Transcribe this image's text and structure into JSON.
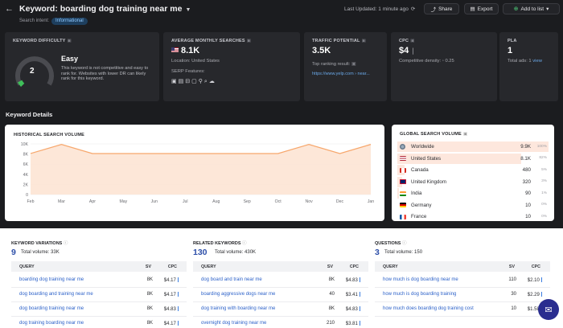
{
  "header": {
    "back_icon": "←",
    "title": "Keyword: boarding dog training near me",
    "caret": "▼",
    "search_intent_label": "Search intent:",
    "search_intent_value": "Informational",
    "last_updated": "Last Updated: 1 minute ago",
    "share_label": "Share",
    "export_label": "Export",
    "add_to_list_label": "Add to list"
  },
  "keyword_difficulty": {
    "label": "KEYWORD DIFFICULTY",
    "value": "2",
    "level": "Easy",
    "score_fraction": 0.02,
    "description": "This keyword is not competitive and easy to rank for. Websites with lower DR can likely rank for this keyword."
  },
  "avg_monthly_searches": {
    "label": "AVERAGE MONTHLY SEARCHES",
    "value": "8.1K",
    "location": "Location: United States",
    "serp_features_label": "SERP Features:",
    "serp_feature_icons": [
      "▣",
      "▤",
      "⊟",
      "▢",
      "⚲",
      "⌕",
      "☁"
    ]
  },
  "traffic_potential": {
    "label": "TRAFFIC POTENTIAL",
    "value": "3.5K",
    "top_ranking_label": "Top ranking result:",
    "top_ranking_url": "https://www.yelp.com › near..."
  },
  "cpc": {
    "label": "CPC",
    "value": "$4",
    "competitive_density": "Competitive density: ◦ 0.25"
  },
  "pla": {
    "label": "PLA",
    "value": "1",
    "total_ads": "Total ads: 1",
    "view_link": "view"
  },
  "section_title": "Keyword Details",
  "historical": {
    "label": "HISTORICAL SEARCH VOLUME"
  },
  "chart_data": {
    "type": "area",
    "title": "HISTORICAL SEARCH VOLUME",
    "categories": [
      "Feb",
      "Mar",
      "Apr",
      "May",
      "Jun",
      "Jul",
      "Aug",
      "Sep",
      "Oct",
      "Nov",
      "Dec",
      "Jan"
    ],
    "values": [
      8100,
      9900,
      8100,
      8100,
      8100,
      8100,
      8100,
      8100,
      8100,
      9900,
      8100,
      9900
    ],
    "y_ticks": [
      "0",
      "2K",
      "4K",
      "6K",
      "8K",
      "10K"
    ],
    "ylim": [
      0,
      10000
    ],
    "color": "#f7a76c",
    "grid": true
  },
  "global": {
    "label": "GLOBAL SEARCH VOLUME",
    "rows": [
      {
        "name": "Worldwide",
        "value": "9.9K",
        "pct": "100%",
        "frac": 1.0,
        "flag": "globe"
      },
      {
        "name": "United States",
        "value": "8.1K",
        "pct": "82%",
        "frac": 0.82,
        "flag": "us"
      },
      {
        "name": "Canada",
        "value": "480",
        "pct": "5%",
        "frac": 0.05,
        "flag": "ca"
      },
      {
        "name": "United Kingdom",
        "value": "320",
        "pct": "3%",
        "frac": 0.03,
        "flag": "uk"
      },
      {
        "name": "India",
        "value": "90",
        "pct": "1%",
        "frac": 0.01,
        "flag": "in"
      },
      {
        "name": "Germany",
        "value": "10",
        "pct": "0%",
        "frac": 0.0,
        "flag": "de"
      },
      {
        "name": "France",
        "value": "10",
        "pct": "0%",
        "frac": 0.0,
        "flag": "fr"
      }
    ]
  },
  "keyword_variations": {
    "label": "KEYWORD VARIATIONS",
    "count": "9",
    "total_volume": "Total volume: 33K",
    "col_query": "QUERY",
    "col_sv": "SV",
    "col_cpc": "CPC",
    "rows": [
      {
        "query": "boarding dog training near me",
        "sv": "8K",
        "cpc": "$4.17"
      },
      {
        "query": "dog boarding and training near me",
        "sv": "8K",
        "cpc": "$4.17"
      },
      {
        "query": "dog boarding training near me",
        "sv": "8K",
        "cpc": "$4.83"
      },
      {
        "query": "dog training boarding near me",
        "sv": "8K",
        "cpc": "$4.17"
      }
    ]
  },
  "related_keywords": {
    "label": "RELATED KEYWORDS",
    "count": "130",
    "total_volume": "Total volume: 430K",
    "col_query": "QUERY",
    "col_sv": "SV",
    "col_cpc": "CPC",
    "rows": [
      {
        "query": "dog board and train near me",
        "sv": "8K",
        "cpc": "$4.83"
      },
      {
        "query": "boarding aggressive dogs near me",
        "sv": "40",
        "cpc": "$3.41"
      },
      {
        "query": "dog training with boarding near me",
        "sv": "8K",
        "cpc": "$4.83"
      },
      {
        "query": "overnight dog training near me",
        "sv": "210",
        "cpc": "$3.81"
      }
    ]
  },
  "questions": {
    "label": "QUESTIONS",
    "count": "3",
    "total_volume": "Total volume: 150",
    "col_query": "QUERY",
    "col_sv": "SV",
    "col_cpc": "CPC",
    "rows": [
      {
        "query": "how much is dog boarding near me",
        "sv": "110",
        "cpc": "$2.10"
      },
      {
        "query": "how much is dog boarding training",
        "sv": "30",
        "cpc": "$2.29"
      },
      {
        "query": "how much does boarding dog training cost",
        "sv": "10",
        "cpc": "$1.58"
      }
    ]
  },
  "colors": {
    "accent_blue": "#2c4ea8",
    "link_blue": "#2d62c9",
    "chart_orange": "#f7a76c",
    "gauge_green": "#3fbf5a"
  }
}
